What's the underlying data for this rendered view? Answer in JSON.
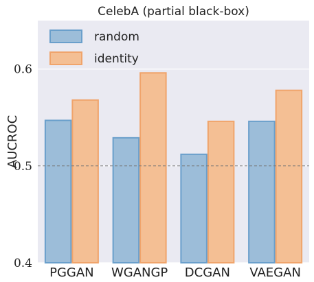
{
  "chart_data": {
    "type": "bar",
    "title": "CelebA (partial black-box)",
    "xlabel": "",
    "ylabel": "AUCROC",
    "ylim": [
      0.4,
      0.65
    ],
    "yticks": [
      "0.4",
      "0.5",
      "0.6"
    ],
    "reference_line": 0.5,
    "categories": [
      "PGGAN",
      "WGANGP",
      "DCGAN",
      "VAEGAN"
    ],
    "series": [
      {
        "name": "random",
        "values": [
          0.547,
          0.529,
          0.512,
          0.546
        ],
        "fill": "#9cbdd9",
        "stroke": "#6a9fcb"
      },
      {
        "name": "identity",
        "values": [
          0.568,
          0.596,
          0.546,
          0.578
        ],
        "fill": "#f4bf94",
        "stroke": "#f0a46b"
      }
    ],
    "legend_position": "top-left",
    "grid": true,
    "background": "#eaeaf2"
  }
}
